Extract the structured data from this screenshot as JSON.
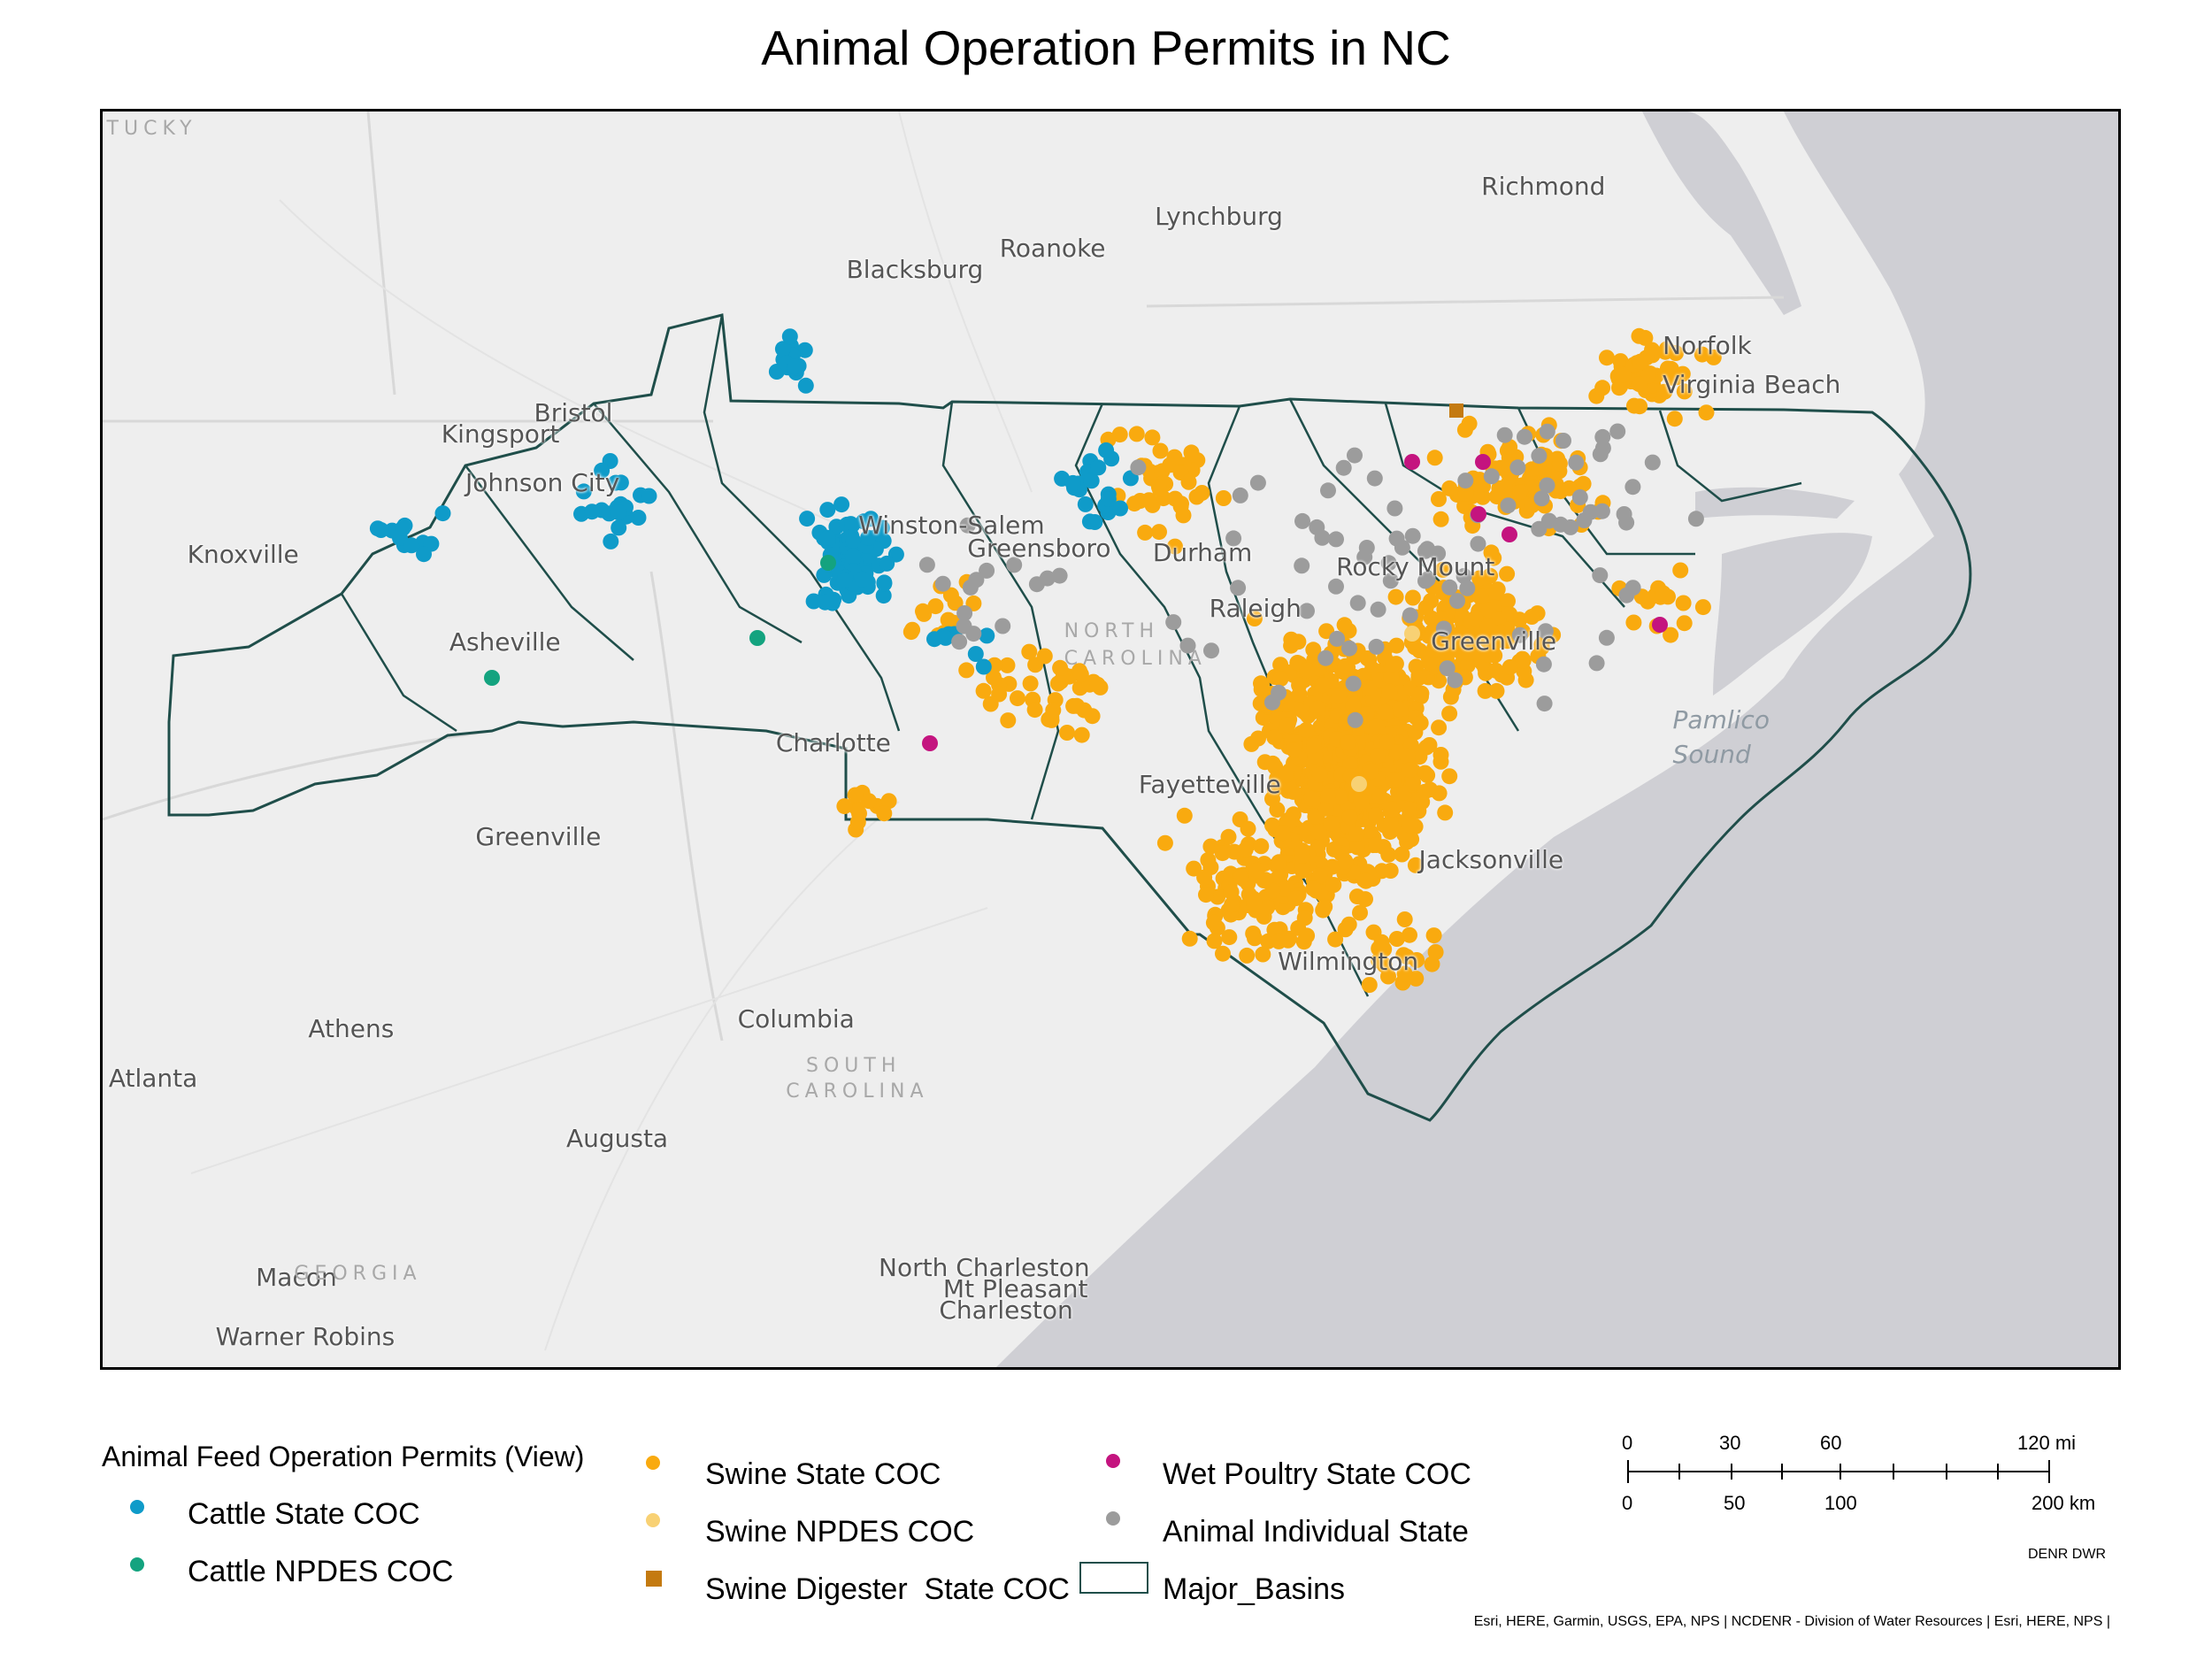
{
  "title": "Animal Operation Permits in NC",
  "map": {
    "place_labels": [
      {
        "name": "Richmond",
        "fx": 0.684,
        "fy": 0.048
      },
      {
        "name": "Lynchburg",
        "fx": 0.522,
        "fy": 0.072
      },
      {
        "name": "Roanoke",
        "fx": 0.445,
        "fy": 0.097
      },
      {
        "name": "Blacksburg",
        "fx": 0.369,
        "fy": 0.114
      },
      {
        "name": "Norfolk",
        "fx": 0.774,
        "fy": 0.175
      },
      {
        "name": "Virginia Beach",
        "fx": 0.774,
        "fy": 0.206
      },
      {
        "name": "Bristol",
        "fx": 0.214,
        "fy": 0.228
      },
      {
        "name": "Kingsport",
        "fx": 0.168,
        "fy": 0.245
      },
      {
        "name": "Johnson City",
        "fx": 0.18,
        "fy": 0.284
      },
      {
        "name": "Knoxville",
        "fx": 0.042,
        "fy": 0.341
      },
      {
        "name": "Winston-Salem",
        "fx": 0.375,
        "fy": 0.318
      },
      {
        "name": "Greensboro",
        "fx": 0.429,
        "fy": 0.336
      },
      {
        "name": "Durham",
        "fx": 0.521,
        "fy": 0.34
      },
      {
        "name": "Rocky Mount",
        "fx": 0.612,
        "fy": 0.351
      },
      {
        "name": "Raleigh",
        "fx": 0.549,
        "fy": 0.384
      },
      {
        "name": "Greenville",
        "fx": 0.659,
        "fy": 0.41
      },
      {
        "name": "Asheville",
        "fx": 0.172,
        "fy": 0.411
      },
      {
        "name": "Charlotte",
        "fx": 0.334,
        "fy": 0.491
      },
      {
        "name": "Fayetteville",
        "fx": 0.514,
        "fy": 0.524
      },
      {
        "name": "Jacksonville",
        "fx": 0.653,
        "fy": 0.584
      },
      {
        "name": "Greenville",
        "fx": 0.185,
        "fy": 0.566
      },
      {
        "name": "Wilmington",
        "fx": 0.583,
        "fy": 0.665
      },
      {
        "name": "Athens",
        "fx": 0.102,
        "fy": 0.719
      },
      {
        "name": "Columbia",
        "fx": 0.315,
        "fy": 0.711
      },
      {
        "name": "Atlanta",
        "fx": 0.003,
        "fy": 0.758
      },
      {
        "name": "Augusta",
        "fx": 0.23,
        "fy": 0.806
      },
      {
        "name": "Macon",
        "fx": 0.076,
        "fy": 0.917
      },
      {
        "name": "Warner Robins",
        "fx": 0.056,
        "fy": 0.964
      },
      {
        "name": "North Charleston",
        "fx": 0.385,
        "fy": 0.909
      },
      {
        "name": "Mt Pleasant",
        "fx": 0.417,
        "fy": 0.926
      },
      {
        "name": "Charleston",
        "fx": 0.415,
        "fy": 0.943
      }
    ],
    "region_labels": [
      {
        "name": "TUCKY",
        "fx": 0.002,
        "fy": 0.005
      },
      {
        "name": "NORTH",
        "fx": 0.477,
        "fy": 0.405
      },
      {
        "name": "CAROLINA",
        "fx": 0.477,
        "fy": 0.427
      },
      {
        "name": "SOUTH",
        "fx": 0.349,
        "fy": 0.751
      },
      {
        "name": "CAROLINA",
        "fx": 0.339,
        "fy": 0.772
      },
      {
        "name": "GEORGIA",
        "fx": 0.095,
        "fy": 0.917
      },
      {
        "name": "Pamlico",
        "fx": 0.779,
        "fy": 0.473
      },
      {
        "name": "Sound",
        "fx": 0.779,
        "fy": 0.5
      }
    ]
  },
  "legend": {
    "title": "Animal Feed Operation Permits (View)",
    "items": [
      {
        "label": "Cattle State COC",
        "color": "#0f9bc9",
        "shape": "circle"
      },
      {
        "label": "Cattle NPDES COC",
        "color": "#14a37f",
        "shape": "circle"
      },
      {
        "label": "Swine State COC",
        "color": "#f9aa0f",
        "shape": "circle"
      },
      {
        "label": "Swine NPDES COC",
        "color": "#f8d174",
        "shape": "circle"
      },
      {
        "label": "Swine Digester  State COC",
        "color": "#c47a10",
        "shape": "square"
      },
      {
        "label": "Wet Poultry State COC",
        "color": "#c4147f",
        "shape": "circle"
      },
      {
        "label": "Animal Individual State",
        "color": "#9c9c9c",
        "shape": "circle"
      },
      {
        "label": "Major_Basins",
        "color": "#1f4e4a",
        "shape": "outline"
      }
    ]
  },
  "scale_bar": {
    "miles": [
      "0",
      "30",
      "60",
      "120 mi"
    ],
    "km": [
      "0",
      "50",
      "100",
      "200 km"
    ]
  },
  "credits": {
    "agency": "DENR DWR",
    "sources": "Esri, HERE, Garmin, USGS, EPA, NPS | NCDENR - Division of Water Resources | Esri, HERE, NPS |"
  }
}
